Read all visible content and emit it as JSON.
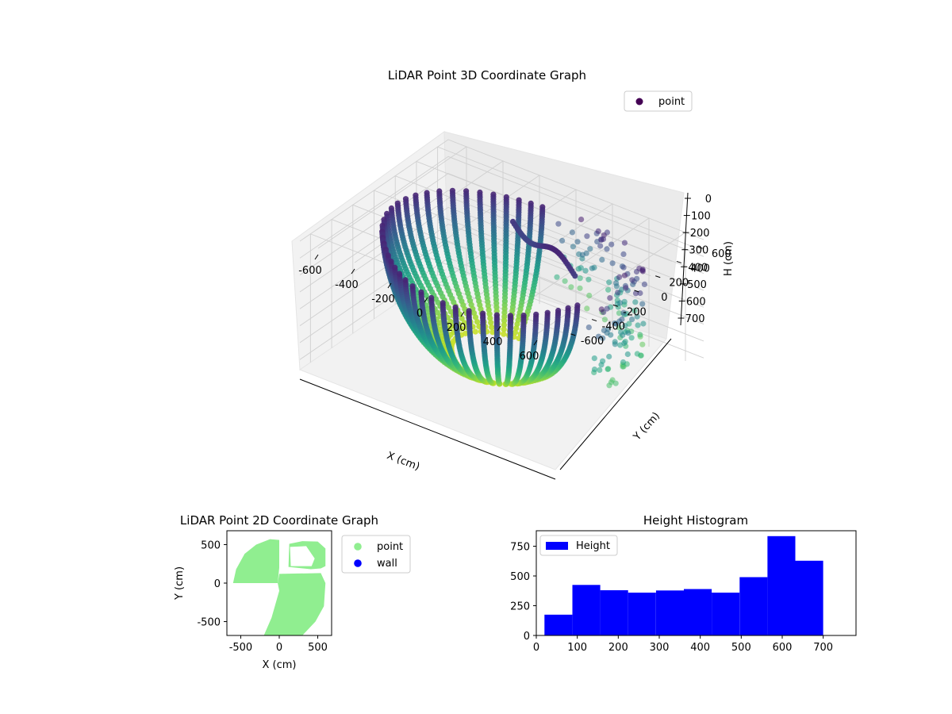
{
  "chart_data": [
    {
      "type": "scatter",
      "title": "LiDAR Point 3D Coordinate Graph",
      "xlabel": "X (cm)",
      "ylabel": "Y (cm)",
      "zlabel": "H (cm)",
      "xlim": [
        -700,
        700
      ],
      "ylim": [
        -700,
        700
      ],
      "zlim": [
        0,
        760
      ],
      "z_inverted": true,
      "x_ticks": [
        -600,
        -400,
        -200,
        0,
        200,
        400,
        600
      ],
      "y_ticks": [
        -600,
        -400,
        -200,
        0,
        200,
        400,
        600
      ],
      "z_ticks": [
        0,
        100,
        200,
        300,
        400,
        500,
        600,
        700
      ],
      "legend": {
        "position": "top-right",
        "entries": [
          "point"
        ]
      },
      "series": [
        {
          "name": "point",
          "color": "#440154",
          "colormap": "viridis",
          "colored_by": "height"
        }
      ],
      "grid": true
    },
    {
      "type": "scatter",
      "title": "LiDAR Point 2D Coordinate Graph",
      "xlabel": "X (cm)",
      "ylabel": "Y (cm)",
      "xlim": [
        -680,
        680
      ],
      "ylim": [
        -680,
        680
      ],
      "x_ticks": [
        -500,
        0,
        500
      ],
      "y_ticks": [
        -500,
        0,
        500
      ],
      "legend": {
        "position": "outside-right",
        "entries": [
          "point",
          "wall"
        ]
      },
      "series": [
        {
          "name": "point",
          "color": "#90ee90"
        },
        {
          "name": "wall",
          "color": "#0000ff"
        }
      ]
    },
    {
      "type": "bar",
      "title": "Height Histogram",
      "xlim": [
        0,
        780
      ],
      "ylim": [
        0,
        880
      ],
      "x_ticks": [
        0,
        100,
        200,
        300,
        400,
        500,
        600,
        700
      ],
      "y_ticks": [
        0,
        250,
        500,
        750
      ],
      "legend": {
        "position": "top-left",
        "entries": [
          "Height"
        ]
      },
      "bin_edges": [
        20,
        88,
        156,
        224,
        292,
        360,
        428,
        496,
        564,
        632,
        700
      ],
      "series": [
        {
          "name": "Height",
          "color": "#0000ff",
          "values": [
            175,
            425,
            380,
            360,
            378,
            390,
            360,
            490,
            835,
            628
          ]
        }
      ]
    }
  ]
}
